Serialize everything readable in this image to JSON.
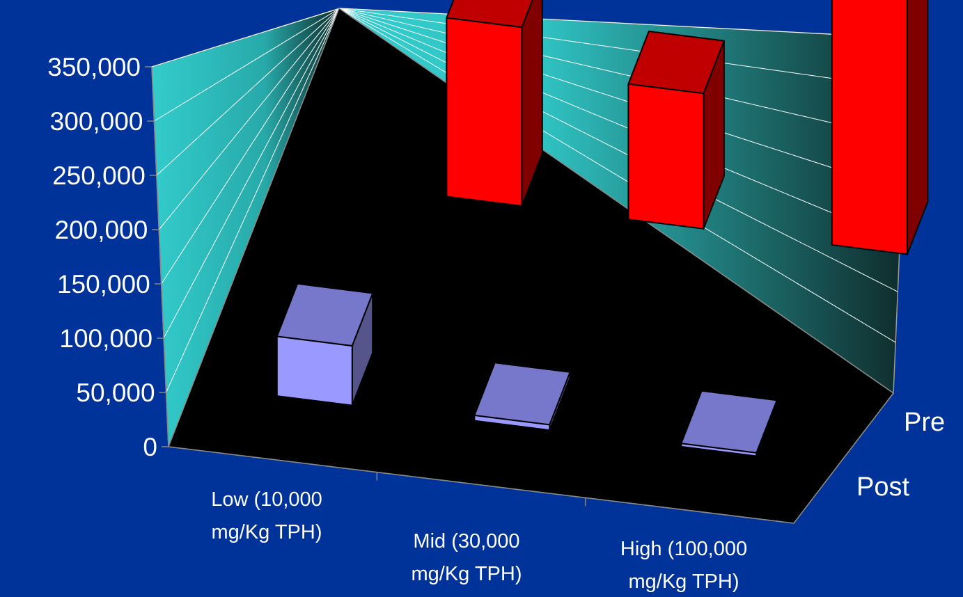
{
  "colors": {
    "background": "#003399",
    "wall_light": "#33cccc",
    "wall_dark": "#0f2a2a",
    "floor": "#000000",
    "pre_front": "#ff0000",
    "pre_top": "#c00000",
    "pre_side": "#800000",
    "post_front": "#9999ff",
    "post_top": "#7777cc",
    "post_side": "#55558c",
    "text": "#ffffff"
  },
  "chart_data": {
    "type": "bar",
    "style": "3d-bar",
    "title": "",
    "xlabel": "",
    "ylabel": "",
    "ylim": [
      0,
      350000
    ],
    "y_ticks": [
      "0",
      "50,000",
      "100,000",
      "150,000",
      "200,000",
      "250,000",
      "300,000",
      "350,000"
    ],
    "grid": true,
    "categories": [
      [
        "Low  (10,000",
        "mg/Kg TPH)"
      ],
      [
        "Mid (30,000",
        "mg/Kg TPH)"
      ],
      [
        "High (100,000",
        "mg/Kg TPH)"
      ]
    ],
    "depth_labels": [
      "Pre",
      "Post"
    ],
    "series": [
      {
        "name": "Post",
        "values": [
          55000,
          5000,
          3000
        ]
      },
      {
        "name": "Pre",
        "values": [
          165000,
          125000,
          345000
        ]
      }
    ]
  }
}
